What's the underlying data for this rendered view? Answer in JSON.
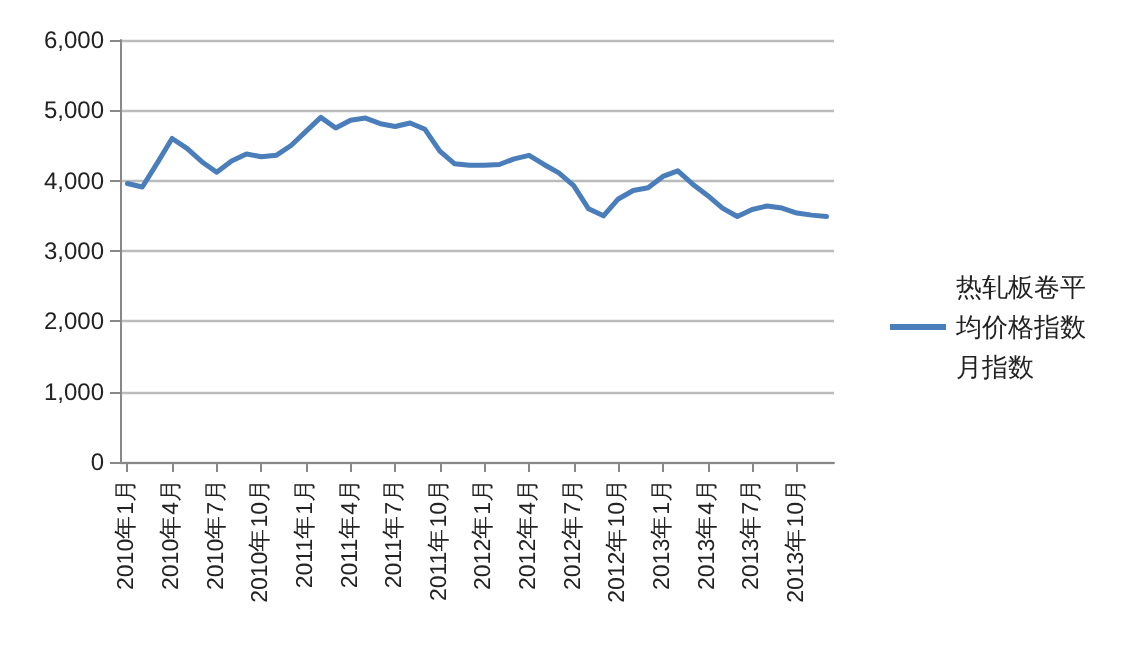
{
  "chart_data": {
    "type": "line",
    "categories": [
      "2010年1月",
      null,
      null,
      "2010年4月",
      null,
      null,
      "2010年7月",
      null,
      null,
      "2010年10月",
      null,
      null,
      "2011年1月",
      null,
      null,
      "2011年4月",
      null,
      null,
      "2011年7月",
      null,
      null,
      "2011年10月",
      null,
      null,
      "2012年1月",
      null,
      null,
      "2012年4月",
      null,
      null,
      "2012年7月",
      null,
      null,
      "2012年10月",
      null,
      null,
      "2013年1月",
      null,
      null,
      "2013年4月",
      null,
      null,
      "2013年7月",
      null,
      null,
      "2013年10月",
      null,
      null
    ],
    "series": [
      {
        "name": "热轧板卷平均价格指数月指数",
        "color": "#4a7ebb",
        "values": [
          3960,
          3910,
          4250,
          4600,
          4460,
          4270,
          4120,
          4280,
          4380,
          4340,
          4360,
          4500,
          4700,
          4900,
          4750,
          4860,
          4890,
          4810,
          4770,
          4820,
          4730,
          4420,
          4240,
          4220,
          4220,
          4230,
          4310,
          4360,
          4230,
          4110,
          3930,
          3600,
          3500,
          3740,
          3860,
          3900,
          4060,
          4140,
          3950,
          3790,
          3610,
          3490,
          3590,
          3640,
          3610,
          3540,
          3510,
          3490
        ]
      }
    ],
    "ylim": [
      0,
      6000
    ],
    "yticks": [
      0,
      {
        "value": 1000,
        "label": "1,000"
      },
      {
        "value": 2000,
        "label": "2,000"
      },
      {
        "value": 3000,
        "label": "3,000"
      },
      {
        "value": 4000,
        "label": "4,000"
      },
      {
        "value": 5000,
        "label": "5,000"
      },
      {
        "value": 6000,
        "label": "6,000"
      }
    ],
    "grid": "y",
    "legend": "right",
    "marker": "none",
    "line_style": "solid"
  }
}
